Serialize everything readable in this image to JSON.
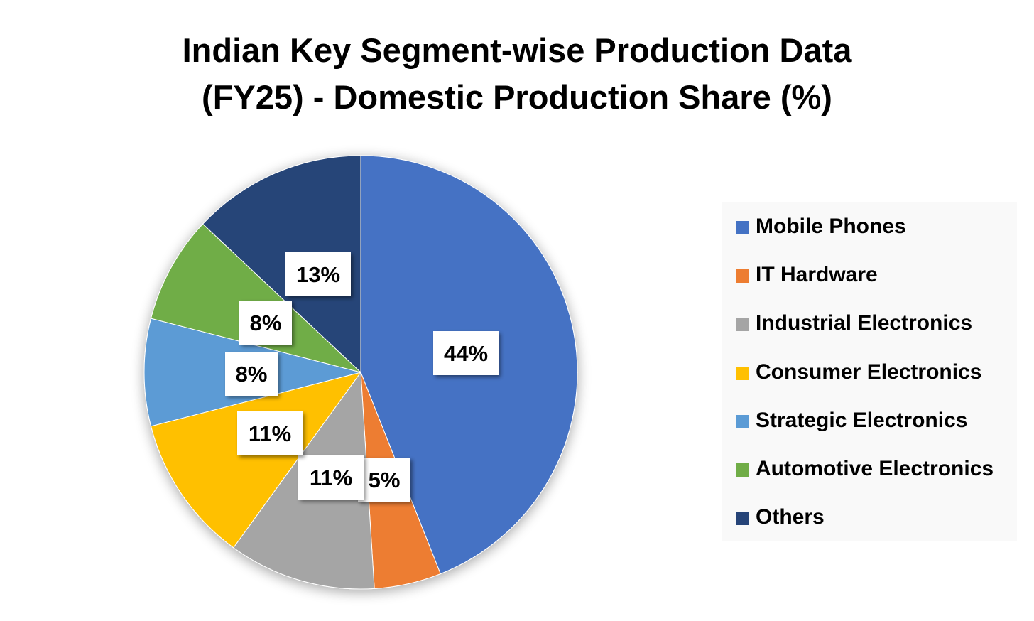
{
  "chart_data": {
    "type": "pie",
    "title": [
      "Indian Key Segment-wise Production Data",
      "(FY25) - Domestic Production Share (%)"
    ],
    "categories": [
      "Mobile Phones",
      "IT Hardware",
      "Industrial Electronics",
      "Consumer Electronics",
      "Strategic Electronics",
      "Automotive Electronics",
      "Others"
    ],
    "values": [
      44,
      5,
      11,
      11,
      8,
      8,
      13
    ],
    "data_labels": [
      "44%",
      "5%",
      "11%",
      "11%",
      "8%",
      "8%",
      "13%"
    ],
    "colors": [
      "#4472C4",
      "#ED7D31",
      "#A5A5A5",
      "#FFC000",
      "#5B9BD5",
      "#70AD47",
      "#264478"
    ],
    "legend_position": "right",
    "start_angle_deg": 0,
    "direction": "clockwise"
  }
}
